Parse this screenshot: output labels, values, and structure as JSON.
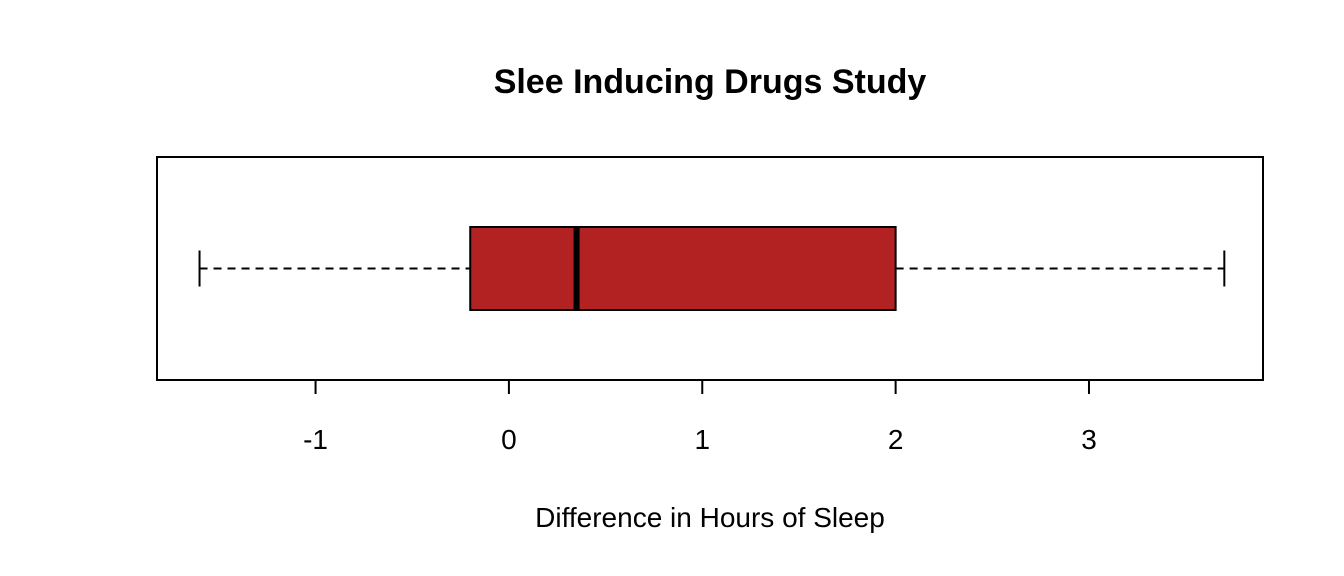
{
  "chart_data": {
    "type": "boxplot",
    "orientation": "horizontal",
    "title": "Slee Inducing Drugs Study",
    "xlabel": "Difference in Hours of Sleep",
    "ylabel": "",
    "xlim": [
      -1.82,
      3.9
    ],
    "x_ticks": [
      -1,
      0,
      1,
      2,
      3
    ],
    "x_tick_labels": [
      "-1",
      "0",
      "1",
      "2",
      "3"
    ],
    "grid": false,
    "box": {
      "min": -1.6,
      "q1": -0.2,
      "median": 0.35,
      "q3": 2.0,
      "max": 3.7
    },
    "colors": {
      "box_fill": "#b22222",
      "outline": "#000000"
    }
  }
}
